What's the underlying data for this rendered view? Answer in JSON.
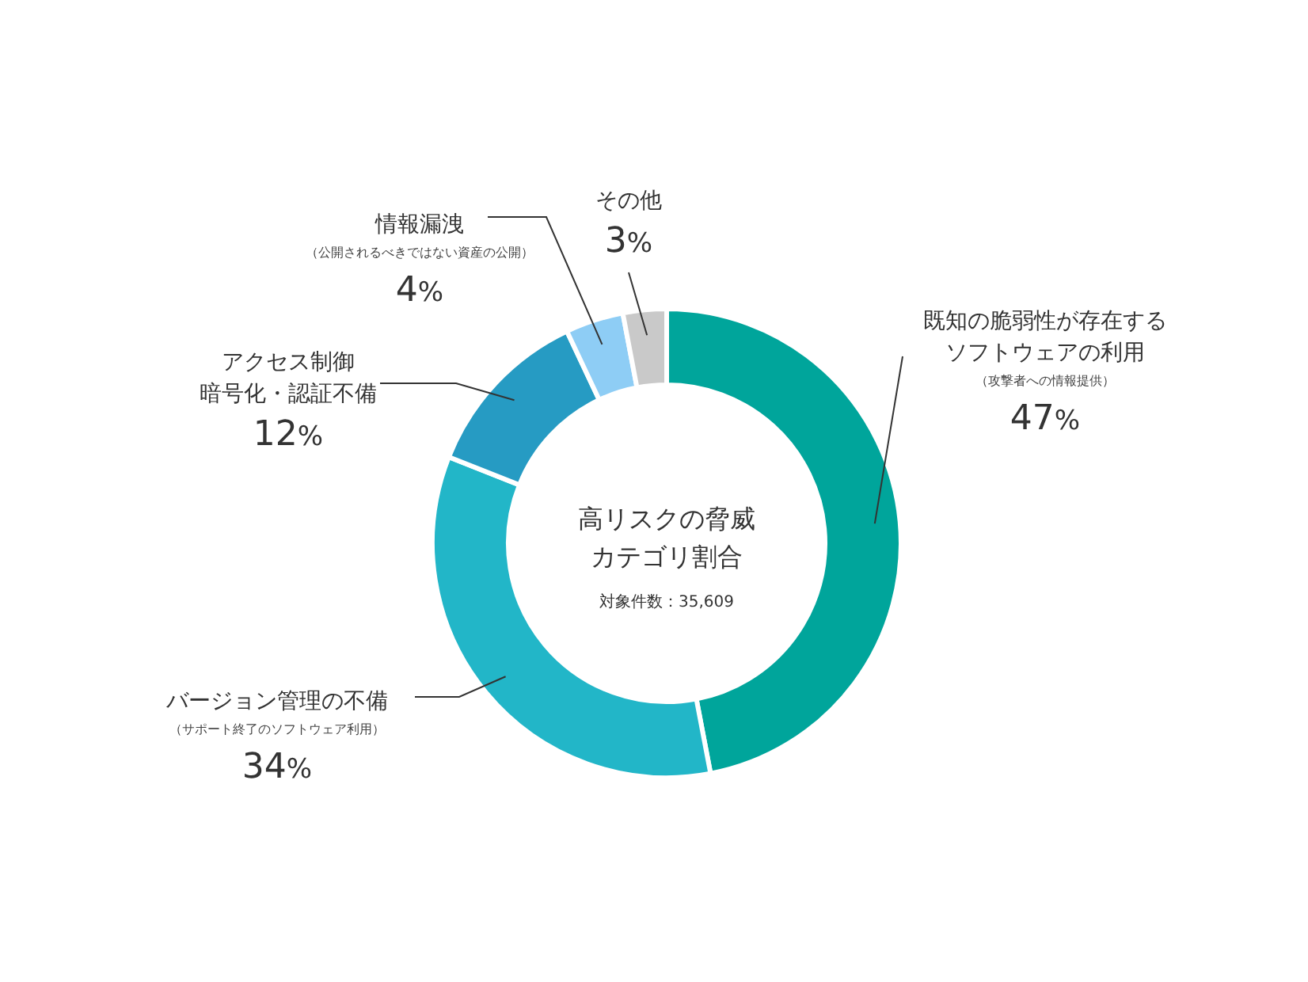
{
  "chart_data": {
    "type": "donut",
    "title": "高リスクの脅威カテゴリ割合",
    "subtitle": "対象件数：35,609",
    "categories": [
      "既知の脆弱性が存在するソフトウェアの利用",
      "バージョン管理の不備",
      "アクセス制御暗号化・認証不備",
      "情報漏洩",
      "その他"
    ],
    "values": [
      47,
      34,
      12,
      4,
      3
    ],
    "colors": [
      "#00a59b",
      "#22b6c8",
      "#269bc3",
      "#8ecdf5",
      "#c9c9c9"
    ],
    "value_labels": [
      "47%",
      "34%",
      "12%",
      "4%",
      "3%"
    ],
    "annotations": [
      {
        "text": "（攻撃者への情報提供）",
        "x": "既知の脆弱性が存在するソフトウェアの利用"
      },
      {
        "text": "（サポート終了のソフトウェア利用）",
        "x": "バージョン管理の不備"
      },
      {
        "text": "（公開されるべきではない資産の公開）",
        "x": "情報漏洩"
      }
    ]
  }
}
